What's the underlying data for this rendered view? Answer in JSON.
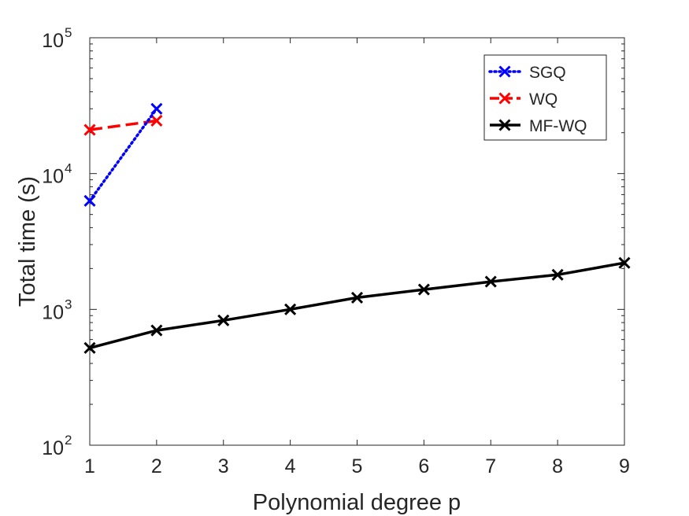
{
  "chart_data": {
    "type": "line",
    "title": "",
    "xlabel": "Polynomial degree p",
    "ylabel": "Total time (s)",
    "x_scale": "linear",
    "y_scale": "log",
    "xlim": [
      1,
      9
    ],
    "ylim": [
      100,
      100000
    ],
    "x_ticks": [
      1,
      2,
      3,
      4,
      5,
      6,
      7,
      8,
      9
    ],
    "y_ticks": [
      {
        "value": 100,
        "base": "10",
        "exp": "2"
      },
      {
        "value": 1000,
        "base": "10",
        "exp": "3"
      },
      {
        "value": 10000,
        "base": "10",
        "exp": "4"
      },
      {
        "value": 100000,
        "base": "10",
        "exp": "5"
      }
    ],
    "grid": false,
    "legend_position": "top-right",
    "series": [
      {
        "name": "SGQ",
        "color": "#0000ff",
        "line_style": "dotted",
        "marker": "x",
        "x": [
          1,
          2
        ],
        "values": [
          6300,
          30000
        ]
      },
      {
        "name": "WQ",
        "color": "#ff0000",
        "line_style": "dashed",
        "marker": "x",
        "x": [
          1,
          2
        ],
        "values": [
          21000,
          24500
        ]
      },
      {
        "name": "MF-WQ",
        "color": "#000000",
        "line_style": "solid",
        "marker": "x",
        "x": [
          1,
          2,
          3,
          4,
          5,
          6,
          7,
          8,
          9
        ],
        "values": [
          520,
          700,
          830,
          1000,
          1220,
          1400,
          1600,
          1800,
          2200
        ]
      }
    ]
  }
}
